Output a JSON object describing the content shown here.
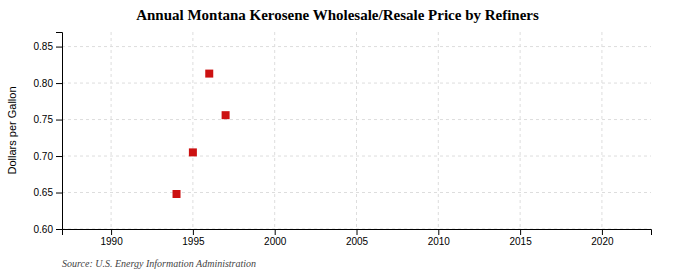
{
  "chart_data": {
    "type": "scatter",
    "title": "Annual Montana Kerosene Wholesale/Resale Price by Refiners",
    "ylabel": "Dollars per Gallon",
    "source": "Source: U.S. Energy Information Administration",
    "x": [
      1994,
      1995,
      1996,
      1997
    ],
    "values": [
      0.648,
      0.705,
      0.813,
      0.756
    ],
    "color": "#cc1111",
    "marker": "square",
    "xlim": [
      1987,
      2023
    ],
    "ylim": [
      0.6,
      0.87
    ],
    "xticks": [
      1990,
      1995,
      2000,
      2005,
      2010,
      2015,
      2020
    ],
    "yticks": [
      {
        "value": 0.6,
        "label": "0.60"
      },
      0.65,
      {
        "value": 0.7,
        "label": "0.70"
      },
      0.75,
      {
        "value": 0.8,
        "label": "0.80"
      },
      0.85
    ],
    "grid": true
  }
}
